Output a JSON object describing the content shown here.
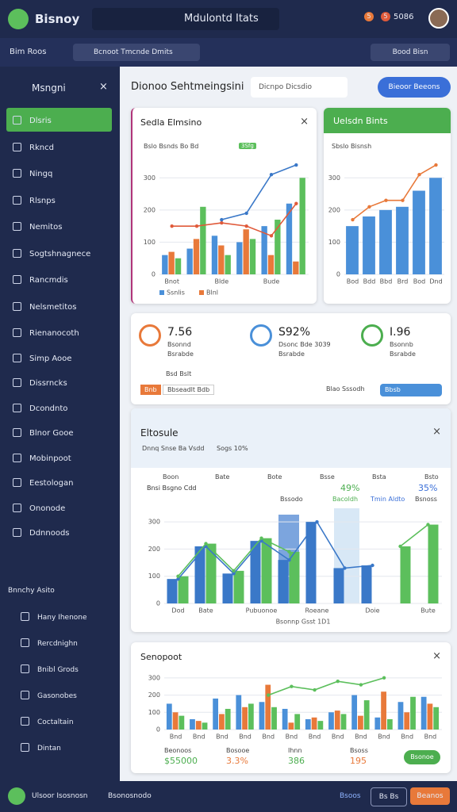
{
  "topbar": {
    "brand": "Bisnoy",
    "title": "Mdulontd Itats",
    "badges": [
      "5",
      "5"
    ],
    "count": "5086"
  },
  "toolbar": {
    "menu": "Bim Roos",
    "search": "Bcnoot Tmcnde Dmits",
    "button": "Bood Bisn"
  },
  "sidebar": {
    "title": "Msngni",
    "items": [
      "Dlsris",
      "Rkncd",
      "Ningq",
      "Rlsnps",
      "Nemitos",
      "Sogtshnagnece",
      "Rancmdis",
      "Nelsmetitos",
      "Rienanocoth",
      "Simp Aooe",
      "Dissrncks",
      "Dcondnto",
      "Blnor Gooe",
      "Mobinpoot",
      "Eestologan",
      "Ononode",
      "Ddnnoods"
    ],
    "section": "Bnnchy Asito",
    "items2": [
      "Hany Ihenone",
      "Rercdnighn",
      "Bnibl Grods",
      "Gasonobes",
      "Coctaltain",
      "Dintan"
    ]
  },
  "header": {
    "title": "Dionoo Sehtmeingsini",
    "search": "Dicnpo Dicsdio",
    "button": "Bieoor Beeons"
  },
  "kpis": [
    {
      "value": "7.56",
      "label": "Bsonnd",
      "sub": "Bsrabde"
    },
    {
      "value": "S92%",
      "label": "Dsonc Bde 3039",
      "sub": "Bsrabde"
    },
    {
      "value": "I.96",
      "label": "Bsonnb",
      "sub": "Bsrabde"
    }
  ],
  "kpi_footer": {
    "note": "Bsd Bslt",
    "tags": [
      "Bnb",
      "Bbseadlt Bdb"
    ],
    "search": "Blao Sssodh",
    "button": "Bbsb"
  },
  "charts": [
    {
      "type": "bar",
      "title": "Sedla Elmsino",
      "subtitle": "Bslo Bsnds Bo Bd",
      "tag": "3Sfg",
      "categories": [
        "Bnot",
        null,
        "Blde",
        null,
        "Bude",
        null
      ],
      "ylim": [
        0,
        350
      ],
      "yticks": [
        0,
        100,
        200,
        300
      ],
      "series": [
        {
          "name": "Ssnlis",
          "color": "#4a90d9",
          "values": [
            60,
            80,
            120,
            100,
            150,
            220
          ]
        },
        {
          "name": "Blnl",
          "color": "#e8793a",
          "values": [
            70,
            110,
            90,
            140,
            60,
            40
          ]
        },
        {
          "color": "#5cbf5c",
          "values": [
            50,
            210,
            60,
            110,
            170,
            300
          ]
        },
        {
          "type": "line",
          "color": "#e05a3a",
          "values": [
            150,
            150,
            160,
            150,
            120,
            220
          ]
        },
        {
          "type": "line",
          "color": "#3a78c8",
          "values": [
            null,
            null,
            170,
            190,
            310,
            340
          ]
        }
      ]
    },
    {
      "type": "bar",
      "title": "Uelsdn Bints",
      "subtitle": "Sbslo Bisnsh",
      "categories": [
        "Bod",
        "Bdd",
        "Bbd",
        "Brd",
        "Bod",
        "Dnd"
      ],
      "ylim": [
        0,
        350
      ],
      "yticks": [
        0,
        100,
        200,
        300
      ],
      "series": [
        {
          "color": "#4a90d9",
          "values": [
            150,
            180,
            200,
            210,
            260,
            300
          ]
        },
        {
          "type": "line",
          "color": "#e8793a",
          "values": [
            170,
            210,
            230,
            230,
            310,
            340
          ]
        }
      ]
    },
    {
      "type": "line",
      "title": "Eltosule",
      "subtitle": "Dnnq Snse Ba Vsdd",
      "tag": "Sogs 10%",
      "columns": [
        "Boon",
        "Bate",
        "Bote",
        "Bsse",
        "Bsta",
        "Bsto"
      ],
      "left_note": "Bnsi Bsgno Cdd",
      "mid": {
        "value": "49%",
        "label": "Bssodo",
        "sub": "Bacoldh"
      },
      "right": {
        "value": "35%",
        "label": "Tmin Aldto",
        "sub": "Bsnoss"
      },
      "x_title": "Bsonnp Gsst 1D1",
      "categories": [
        "Dod",
        "Bate",
        null,
        "Pubuonoe",
        null,
        "Roeane",
        null,
        "Doie",
        null,
        "Bute"
      ],
      "ylim": [
        0,
        350
      ],
      "yticks": [
        0,
        100,
        200,
        300
      ],
      "series": [
        {
          "color": "#3a78c8",
          "values": [
            90,
            210,
            110,
            230,
            160,
            300,
            130,
            140,
            null,
            null
          ]
        },
        {
          "color": "#5cbf5c",
          "values": [
            100,
            220,
            120,
            240,
            190,
            null,
            null,
            null,
            210,
            290
          ]
        }
      ]
    },
    {
      "type": "bar",
      "title": "Senopoot",
      "categories": [
        "Bnd",
        "Bnd",
        "Bnd",
        "Bnd",
        "Bnd",
        "Bnd",
        "Bnd",
        "Bnd",
        "Bnd",
        "Bnd",
        "Bnd",
        "Bnd"
      ],
      "ylim": [
        0,
        350
      ],
      "yticks": [
        0,
        100,
        200,
        300
      ],
      "series": [
        {
          "color": "#4a90d9",
          "values": [
            150,
            60,
            180,
            200,
            160,
            120,
            60,
            100,
            200,
            70,
            160,
            190
          ]
        },
        {
          "color": "#e8793a",
          "values": [
            100,
            50,
            90,
            130,
            260,
            40,
            70,
            110,
            80,
            220,
            100,
            150
          ]
        },
        {
          "color": "#5cbf5c",
          "values": [
            80,
            40,
            120,
            150,
            130,
            90,
            50,
            90,
            170,
            60,
            190,
            130
          ]
        },
        {
          "type": "line",
          "color": "#5cbf5c",
          "values": [
            null,
            null,
            null,
            null,
            200,
            250,
            230,
            280,
            260,
            300,
            null,
            null
          ]
        }
      ],
      "stats": [
        {
          "label": "Beonoos",
          "value": "$55000"
        },
        {
          "label": "Bosooe",
          "value": "3.3%"
        },
        {
          "label": "Ihnn",
          "value": "386"
        },
        {
          "label": "Bsoss",
          "value": "195"
        }
      ],
      "button": "Bsonoe"
    }
  ],
  "bottombar": {
    "user": "Ulsoor Isosnosn",
    "status": "Bsonosnodo",
    "link": "Bsoos",
    "btn1": "Bs Bs",
    "btn2": "Beanos"
  }
}
